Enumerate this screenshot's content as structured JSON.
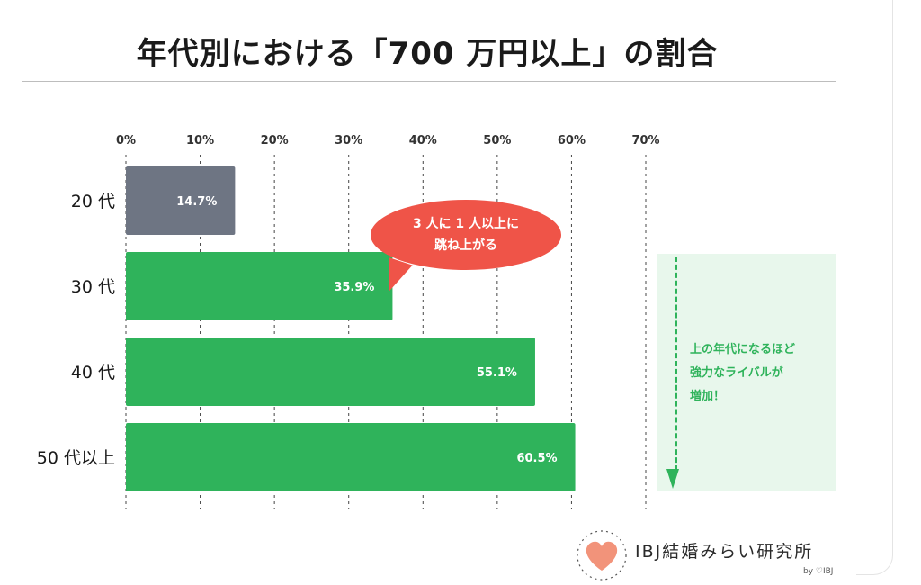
{
  "page": {
    "title": "年代別における「700 万円以上」の割合"
  },
  "chart_data": {
    "type": "bar",
    "orientation": "horizontal",
    "categories": [
      "20 代",
      "30 代",
      "40 代",
      "50 代以上"
    ],
    "values": [
      14.7,
      35.9,
      55.1,
      60.5
    ],
    "value_labels": [
      "14.7%",
      "35.9%",
      "55.1%",
      "60.5%"
    ],
    "bar_colors": [
      "#6e7583",
      "#2fb35b",
      "#2fb35b",
      "#2fb35b"
    ],
    "xlim": [
      0,
      70
    ],
    "x_ticks": [
      0,
      10,
      20,
      30,
      40,
      50,
      60,
      70
    ],
    "x_tick_labels": [
      "0%",
      "10%",
      "20%",
      "30%",
      "40%",
      "50%",
      "60%",
      "70%"
    ],
    "axis_position": "top",
    "grid": "vertical dashed"
  },
  "callout": {
    "line1": "3 人に 1 人以上に",
    "line2": "跳ね上がる",
    "color": "#ef5448"
  },
  "note": {
    "line1": "上の年代になるほど",
    "line2": "強力なライバルが",
    "line3": "増加！",
    "color": "#2fb35b"
  },
  "logo": {
    "text": "IBJ結婚みらい研究所",
    "by": "by ♡IBJ",
    "icon": "heart-icon",
    "heart_color": "#f2937a"
  }
}
